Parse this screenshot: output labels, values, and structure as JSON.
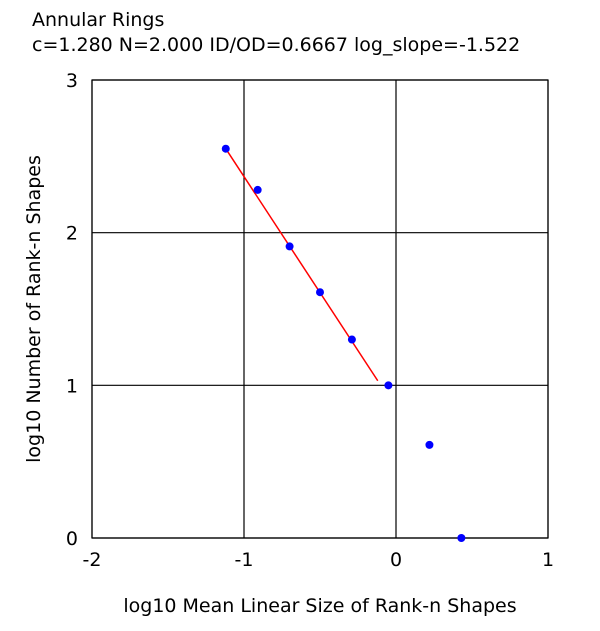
{
  "chart_data": {
    "type": "scatter",
    "title": "Annular Rings",
    "subtitle": "c=1.280  N=2.000  ID/OD=0.6667  log_slope=-1.522",
    "xlabel": "log10 Mean Linear Size of Rank-n Shapes",
    "ylabel": "log10 Number of Rank-n Shapes",
    "xlim": [
      -2,
      1
    ],
    "ylim": [
      0,
      3
    ],
    "xticks": [
      -2,
      -1,
      0,
      1
    ],
    "yticks": [
      0,
      1,
      2,
      3
    ],
    "xtick_labels": [
      "-2",
      "-1",
      "0",
      "1"
    ],
    "ytick_labels": [
      "0",
      "1",
      "2",
      "3"
    ],
    "grid": true,
    "point_color": "#0000ff",
    "line_color": "#ff0000",
    "series": [
      {
        "type": "scatter",
        "x": [
          -1.12,
          -0.91,
          -0.7,
          -0.5,
          -0.29,
          -0.05,
          0.22,
          0.43
        ],
        "y": [
          2.55,
          2.28,
          1.91,
          1.61,
          1.3,
          1.0,
          0.61,
          0.0
        ]
      },
      {
        "type": "line",
        "x": [
          -1.12,
          -0.12
        ],
        "y": [
          2.55,
          1.03
        ]
      }
    ]
  }
}
